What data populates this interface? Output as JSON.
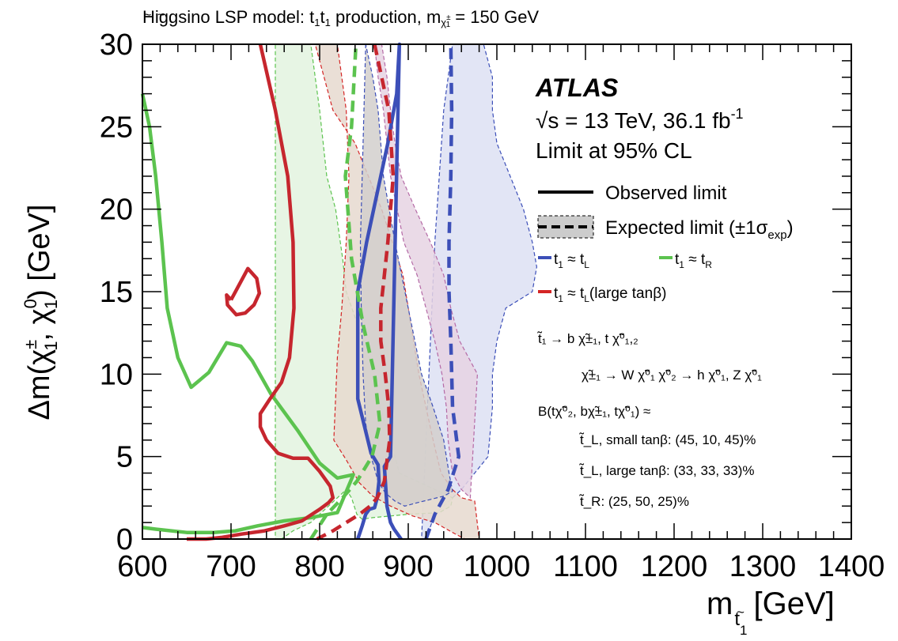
{
  "chart_data": {
    "type": "line",
    "title": "Higgsino LSP model: t̃₁t̃₁ production, m(χ̃±₁) = 150 GeV",
    "title_parts": {
      "prefix": "Higgsino LSP model: ",
      "sym": "t",
      "sub1": "1",
      "mid": " production, m",
      "chi_sup": "±",
      "chi_sub": "1",
      "suffix": " = 150 GeV"
    },
    "xlabel": "m",
    "xlabel_sub": "1",
    "xlabel_unit": "[GeV]",
    "ylabel": "Δm(χ̃±₁, χ̃⁰₁) [GeV]",
    "ylabel_parts": {
      "prefix": "Δm(",
      "chi": "χ",
      "pm": "±",
      "zero": "0",
      "sub": "1",
      "sep": ", ",
      "suffix": ") [GeV]"
    },
    "xlim": [
      600,
      1400
    ],
    "ylim": [
      0,
      30
    ],
    "xticks": [
      "600",
      "700",
      "800",
      "900",
      "1000",
      "1100",
      "1200",
      "1300",
      "1400"
    ],
    "yticks": [
      "0",
      "5",
      "10",
      "15",
      "20",
      "25",
      "30"
    ],
    "grid": false,
    "legend_position": "top-right",
    "colors": {
      "tL": "#3c4fb8",
      "tR": "#5cc34f",
      "large": "#d42525",
      "blue_fill": "#dde1f3",
      "green_fill": "#e3f3df",
      "red_fill": "#e6d9cf",
      "red_line": "#c6262e"
    },
    "annotations": {
      "experiment": "ATLAS",
      "energy": "√s = 13 TeV, 36.1 fb",
      "lumi_exp": "-1",
      "cl": "Limit at 95% CL",
      "observed": "Observed limit",
      "expected": "Expected limit (±1σ",
      "expected_sub": "exp",
      "expected_close": ")",
      "leg_tL": "t₁ ≈ t_L",
      "leg_tR": "t₁ ≈ t_R",
      "leg_large": "t₁ ≈ t_L(large tanβ)",
      "leg_tL_lab": "1",
      "leg_tL_sub": "L",
      "leg_tR_sub": "R",
      "leg_large_suffix": "(large tanβ)",
      "decay1": "t̃₁ → b χ̃±₁, t χ̃⁰₁,₂",
      "decay2": "χ̃±₁ → W χ̃⁰₁    χ̃⁰₂ → h χ̃⁰₁, Z χ̃⁰₁",
      "br_head": "B(tχ̃⁰₂, bχ̃±₁, tχ̃⁰₁) ≈",
      "br1": "t̃_L, small tanβ: (45, 10, 45)%",
      "br2": "t̃_L, large tanβ: (33, 33, 33)%",
      "br3": "t̃_R: (25, 50, 25)%"
    },
    "series": [
      {
        "name": "t₁ ≈ t_L observed",
        "style": "solid",
        "color_key": "tL",
        "x": [
          843,
          848,
          852,
          856,
          862,
          865,
          867,
          866,
          858,
          843,
          843,
          853,
          865,
          877,
          887,
          890,
          880,
          873,
          876,
          880,
          884,
          892
        ],
        "y": [
          0,
          0.8,
          1.5,
          1.8,
          1.9,
          2.5,
          3.5,
          4.5,
          5.2,
          8.5,
          15,
          18,
          21,
          24,
          27,
          30,
          5,
          4.4,
          2,
          1,
          0.6,
          0
        ]
      },
      {
        "name": "t₁ ≈ t_L expected",
        "style": "dashed",
        "color_key": "tL",
        "x": [
          920,
          930,
          945,
          957,
          950,
          948,
          946,
          946,
          948,
          949,
          948
        ],
        "y": [
          0,
          1.5,
          3,
          5,
          8,
          12,
          15,
          18,
          22,
          26,
          30
        ]
      },
      {
        "name": "t₁ ≈ t_R observed",
        "style": "solid",
        "color_key": "tR",
        "x": [
          600,
          608,
          615,
          622,
          628,
          640,
          655,
          675,
          695,
          711,
          724,
          745,
          775,
          800,
          820,
          838,
          820,
          790,
          760,
          730,
          705,
          680,
          650,
          615,
          600
        ],
        "y": [
          27,
          25,
          22,
          18,
          14,
          11,
          9.2,
          10.1,
          11.9,
          11.7,
          10.8,
          8.8,
          6.6,
          4.6,
          3.7,
          3.9,
          1.6,
          1.3,
          1.1,
          0.8,
          0.5,
          0.4,
          0.4,
          0.6,
          0.7
        ]
      },
      {
        "name": "t₁ ≈ t_R expected",
        "style": "dashed",
        "color_key": "tR",
        "x": [
          790,
          808,
          826,
          842,
          859,
          868,
          862,
          849,
          836,
          829,
          836,
          841
        ],
        "y": [
          0,
          1.5,
          2.5,
          3.5,
          5,
          7,
          10,
          13,
          17,
          22,
          25,
          30
        ]
      },
      {
        "name": "large tanβ observed",
        "style": "solid",
        "color_key": "large",
        "x": [
          733,
          750,
          764,
          770,
          771,
          766,
          757,
          744,
          733,
          733,
          740,
          753,
          770,
          787,
          800,
          812,
          815,
          810,
          800,
          780,
          760,
          738,
          712,
          690,
          672,
          650
        ],
        "y": [
          30,
          26,
          22,
          18,
          14,
          11,
          9.5,
          8.5,
          7.6,
          6.8,
          6,
          5.2,
          4.9,
          4.9,
          4.1,
          3.2,
          2.5,
          2.2,
          1.8,
          1.1,
          0.8,
          0.5,
          0.3,
          0.1,
          0,
          0
        ]
      },
      {
        "name": "large tanβ island",
        "style": "solid",
        "color_key": "large",
        "x": [
          700,
          719,
          729,
          732,
          726,
          716,
          706,
          696,
          695,
          700
        ],
        "y": [
          14.5,
          16.4,
          15.8,
          14.9,
          14.2,
          13.7,
          13.6,
          14.2,
          14.8,
          14.5
        ]
      },
      {
        "name": "large tanβ expected",
        "style": "dashed",
        "color_key": "large",
        "x": [
          862,
          878,
          883,
          877,
          873,
          869,
          869,
          874,
          878,
          879,
          873,
          865,
          857,
          845,
          830,
          815,
          797
        ],
        "y": [
          30,
          26,
          22,
          18,
          16,
          14,
          12,
          10,
          8,
          6,
          3.5,
          2.5,
          2,
          1.5,
          1,
          0.5,
          0
        ]
      }
    ]
  }
}
